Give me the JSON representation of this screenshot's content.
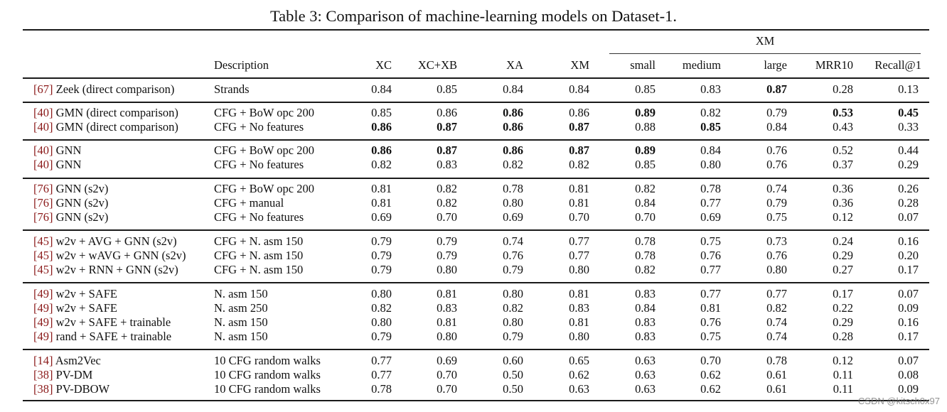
{
  "caption": "Table 3: Comparison of machine-learning models on Dataset-1.",
  "header": {
    "group_label": "XM",
    "columns": [
      "",
      "Description",
      "XC",
      "XC+XB",
      "XA",
      "XM",
      "small",
      "medium",
      "large",
      "MRR10",
      "Recall@1"
    ]
  },
  "colors": {
    "citation": "#8b1a1a",
    "text": "#111111",
    "rule": "#1a1a1a"
  },
  "groups": [
    {
      "rows": [
        {
          "cite": "[67]",
          "model": " Zeek (direct comparison)",
          "desc": "Strands",
          "values": [
            "0.84",
            "0.85",
            "0.84",
            "0.84",
            "0.85",
            "0.83",
            "0.87",
            "0.28",
            "0.13"
          ],
          "bold": [
            false,
            false,
            false,
            false,
            false,
            false,
            true,
            false,
            false
          ]
        }
      ]
    },
    {
      "rows": [
        {
          "cite": "[40]",
          "model": " GMN (direct comparison)",
          "desc": "CFG + BoW opc 200",
          "values": [
            "0.85",
            "0.86",
            "0.86",
            "0.86",
            "0.89",
            "0.82",
            "0.79",
            "0.53",
            "0.45"
          ],
          "bold": [
            false,
            false,
            true,
            false,
            true,
            false,
            false,
            true,
            true
          ]
        },
        {
          "cite": "[40]",
          "model": " GMN (direct comparison)",
          "desc": "CFG + No features",
          "values": [
            "0.86",
            "0.87",
            "0.86",
            "0.87",
            "0.88",
            "0.85",
            "0.84",
            "0.43",
            "0.33"
          ],
          "bold": [
            true,
            true,
            true,
            true,
            false,
            true,
            false,
            false,
            false
          ]
        }
      ]
    },
    {
      "rows": [
        {
          "cite": "[40]",
          "model": " GNN",
          "desc": "CFG + BoW opc 200",
          "values": [
            "0.86",
            "0.87",
            "0.86",
            "0.87",
            "0.89",
            "0.84",
            "0.76",
            "0.52",
            "0.44"
          ],
          "bold": [
            true,
            true,
            true,
            true,
            true,
            false,
            false,
            false,
            false
          ]
        },
        {
          "cite": "[40]",
          "model": " GNN",
          "desc": "CFG + No features",
          "values": [
            "0.82",
            "0.83",
            "0.82",
            "0.82",
            "0.85",
            "0.80",
            "0.76",
            "0.37",
            "0.29"
          ],
          "bold": [
            false,
            false,
            false,
            false,
            false,
            false,
            false,
            false,
            false
          ]
        }
      ]
    },
    {
      "rows": [
        {
          "cite": "[76]",
          "model": " GNN (s2v)",
          "desc": "CFG + BoW opc 200",
          "values": [
            "0.81",
            "0.82",
            "0.78",
            "0.81",
            "0.82",
            "0.78",
            "0.74",
            "0.36",
            "0.26"
          ],
          "bold": [
            false,
            false,
            false,
            false,
            false,
            false,
            false,
            false,
            false
          ]
        },
        {
          "cite": "[76]",
          "model": " GNN (s2v)",
          "desc": "CFG + manual",
          "values": [
            "0.81",
            "0.82",
            "0.80",
            "0.81",
            "0.84",
            "0.77",
            "0.79",
            "0.36",
            "0.28"
          ],
          "bold": [
            false,
            false,
            false,
            false,
            false,
            false,
            false,
            false,
            false
          ]
        },
        {
          "cite": "[76]",
          "model": " GNN (s2v)",
          "desc": "CFG + No features",
          "values": [
            "0.69",
            "0.70",
            "0.69",
            "0.70",
            "0.70",
            "0.69",
            "0.75",
            "0.12",
            "0.07"
          ],
          "bold": [
            false,
            false,
            false,
            false,
            false,
            false,
            false,
            false,
            false
          ]
        }
      ]
    },
    {
      "rows": [
        {
          "cite": "[45]",
          "model": " w2v + AVG + GNN (s2v)",
          "desc": "CFG + N. asm 150",
          "values": [
            "0.79",
            "0.79",
            "0.74",
            "0.77",
            "0.78",
            "0.75",
            "0.73",
            "0.24",
            "0.16"
          ],
          "bold": [
            false,
            false,
            false,
            false,
            false,
            false,
            false,
            false,
            false
          ]
        },
        {
          "cite": "[45]",
          "model": " w2v + wAVG + GNN (s2v)",
          "desc": "CFG + N. asm 150",
          "values": [
            "0.79",
            "0.79",
            "0.76",
            "0.77",
            "0.78",
            "0.76",
            "0.76",
            "0.29",
            "0.20"
          ],
          "bold": [
            false,
            false,
            false,
            false,
            false,
            false,
            false,
            false,
            false
          ]
        },
        {
          "cite": "[45]",
          "model": " w2v + RNN + GNN (s2v)",
          "desc": "CFG + N. asm 150",
          "values": [
            "0.79",
            "0.80",
            "0.79",
            "0.80",
            "0.82",
            "0.77",
            "0.80",
            "0.27",
            "0.17"
          ],
          "bold": [
            false,
            false,
            false,
            false,
            false,
            false,
            false,
            false,
            false
          ]
        }
      ]
    },
    {
      "rows": [
        {
          "cite": "[49]",
          "model": " w2v + SAFE",
          "desc": "N. asm 150",
          "values": [
            "0.80",
            "0.81",
            "0.80",
            "0.81",
            "0.83",
            "0.77",
            "0.77",
            "0.17",
            "0.07"
          ],
          "bold": [
            false,
            false,
            false,
            false,
            false,
            false,
            false,
            false,
            false
          ]
        },
        {
          "cite": "[49]",
          "model": " w2v + SAFE",
          "desc": "N. asm 250",
          "values": [
            "0.82",
            "0.83",
            "0.82",
            "0.83",
            "0.84",
            "0.81",
            "0.82",
            "0.22",
            "0.09"
          ],
          "bold": [
            false,
            false,
            false,
            false,
            false,
            false,
            false,
            false,
            false
          ]
        },
        {
          "cite": "[49]",
          "model": " w2v + SAFE + trainable",
          "desc": "N. asm 150",
          "values": [
            "0.80",
            "0.81",
            "0.80",
            "0.81",
            "0.83",
            "0.76",
            "0.74",
            "0.29",
            "0.16"
          ],
          "bold": [
            false,
            false,
            false,
            false,
            false,
            false,
            false,
            false,
            false
          ]
        },
        {
          "cite": "[49]",
          "model": " rand + SAFE + trainable",
          "desc": "N. asm 150",
          "values": [
            "0.79",
            "0.80",
            "0.79",
            "0.80",
            "0.83",
            "0.75",
            "0.74",
            "0.28",
            "0.17"
          ],
          "bold": [
            false,
            false,
            false,
            false,
            false,
            false,
            false,
            false,
            false
          ]
        }
      ]
    },
    {
      "rows": [
        {
          "cite": "[14]",
          "model": " Asm2Vec",
          "desc": "10 CFG random walks",
          "values": [
            "0.77",
            "0.69",
            "0.60",
            "0.65",
            "0.63",
            "0.70",
            "0.78",
            "0.12",
            "0.07"
          ],
          "bold": [
            false,
            false,
            false,
            false,
            false,
            false,
            false,
            false,
            false
          ]
        },
        {
          "cite": "[38]",
          "model": " PV-DM",
          "desc": "10 CFG random walks",
          "values": [
            "0.77",
            "0.70",
            "0.50",
            "0.62",
            "0.63",
            "0.62",
            "0.61",
            "0.11",
            "0.08"
          ],
          "bold": [
            false,
            false,
            false,
            false,
            false,
            false,
            false,
            false,
            false
          ]
        },
        {
          "cite": "[38]",
          "model": " PV-DBOW",
          "desc": "10 CFG random walks",
          "values": [
            "0.78",
            "0.70",
            "0.50",
            "0.63",
            "0.63",
            "0.62",
            "0.61",
            "0.11",
            "0.09"
          ],
          "bold": [
            false,
            false,
            false,
            false,
            false,
            false,
            false,
            false,
            false
          ]
        }
      ]
    }
  ],
  "watermark": "CSDN @kitsch0x97"
}
